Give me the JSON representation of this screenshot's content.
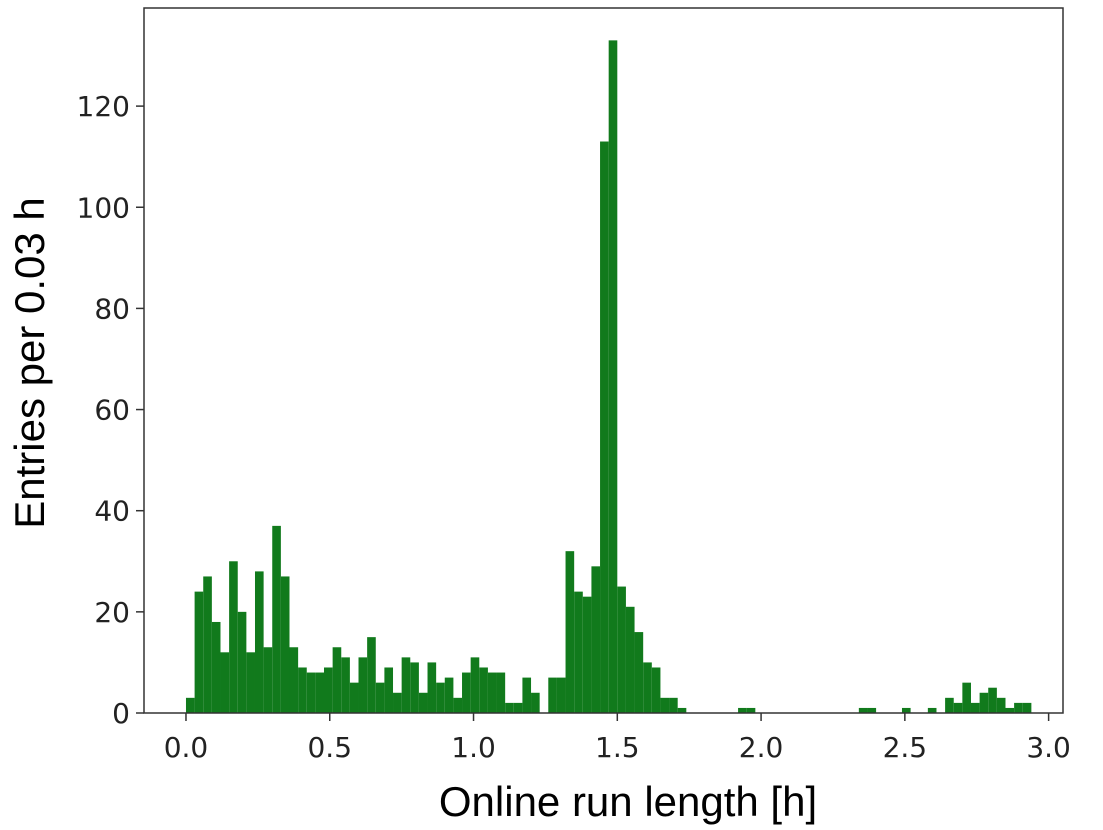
{
  "chart_data": {
    "type": "histogram",
    "xlabel": "Online run length [h]",
    "ylabel": "Entries per 0.03 h",
    "color": "#117a1c",
    "bins": [
      0,
      0.03,
      0.06,
      0.09,
      0.12,
      0.15,
      0.18,
      0.21,
      0.24,
      0.27,
      0.3,
      0.33,
      0.36,
      0.39,
      0.42,
      0.45,
      0.48,
      0.51,
      0.54,
      0.57,
      0.6,
      0.63,
      0.66,
      0.69,
      0.72,
      0.75,
      0.78,
      0.81,
      0.84,
      0.87,
      0.9,
      0.93,
      0.96,
      0.99,
      1.02,
      1.05,
      1.08,
      1.11,
      1.14,
      1.17,
      1.2,
      1.23,
      1.26,
      1.29,
      1.32,
      1.35,
      1.38,
      1.41,
      1.44,
      1.47,
      1.5,
      1.53,
      1.56,
      1.59,
      1.62,
      1.65,
      1.68,
      1.71,
      1.74,
      1.77,
      1.8,
      1.83,
      1.86,
      1.89,
      1.92,
      1.95,
      1.98,
      2.01,
      2.04,
      2.07,
      2.1,
      2.13,
      2.16,
      2.19,
      2.22,
      2.25,
      2.28,
      2.31,
      2.34,
      2.37,
      2.4,
      2.43,
      2.46,
      2.49,
      2.52,
      2.55,
      2.58,
      2.61,
      2.64,
      2.67,
      2.7,
      2.73,
      2.76,
      2.79,
      2.82,
      2.85,
      2.88,
      2.91,
      2.94,
      2.97,
      3.0
    ],
    "values": [
      3,
      24,
      27,
      18,
      12,
      30,
      20,
      12,
      28,
      13,
      37,
      27,
      13,
      9,
      8,
      8,
      9,
      13,
      11,
      6,
      11,
      15,
      6,
      9,
      4,
      11,
      10,
      4,
      10,
      6,
      7,
      3,
      8,
      11,
      9,
      8,
      8,
      2,
      2,
      7,
      4,
      0,
      7,
      7,
      32,
      24,
      23,
      29,
      113,
      133,
      25,
      21,
      16,
      10,
      9,
      3,
      3,
      1,
      0,
      0,
      0,
      0,
      0,
      0,
      1,
      1,
      0,
      0,
      0,
      0,
      0,
      0,
      0,
      0,
      0,
      0,
      0,
      0,
      1,
      1,
      0,
      0,
      0,
      1,
      0,
      0,
      1,
      0,
      3,
      2,
      6,
      2,
      4,
      5,
      3,
      1,
      2,
      2,
      0,
      0
    ],
    "xlim": [
      -0.146,
      3.05
    ],
    "ylim": [
      0,
      139.4
    ],
    "xticks": [
      {
        "value": 0,
        "label": "0.0"
      },
      0.5,
      {
        "value": 1,
        "label": "1.0"
      },
      1.5,
      {
        "value": 2,
        "label": "2.0"
      },
      2.5,
      {
        "value": 3,
        "label": "3.0"
      }
    ],
    "yticks": [
      0,
      20,
      40,
      60,
      80,
      100,
      120
    ]
  }
}
